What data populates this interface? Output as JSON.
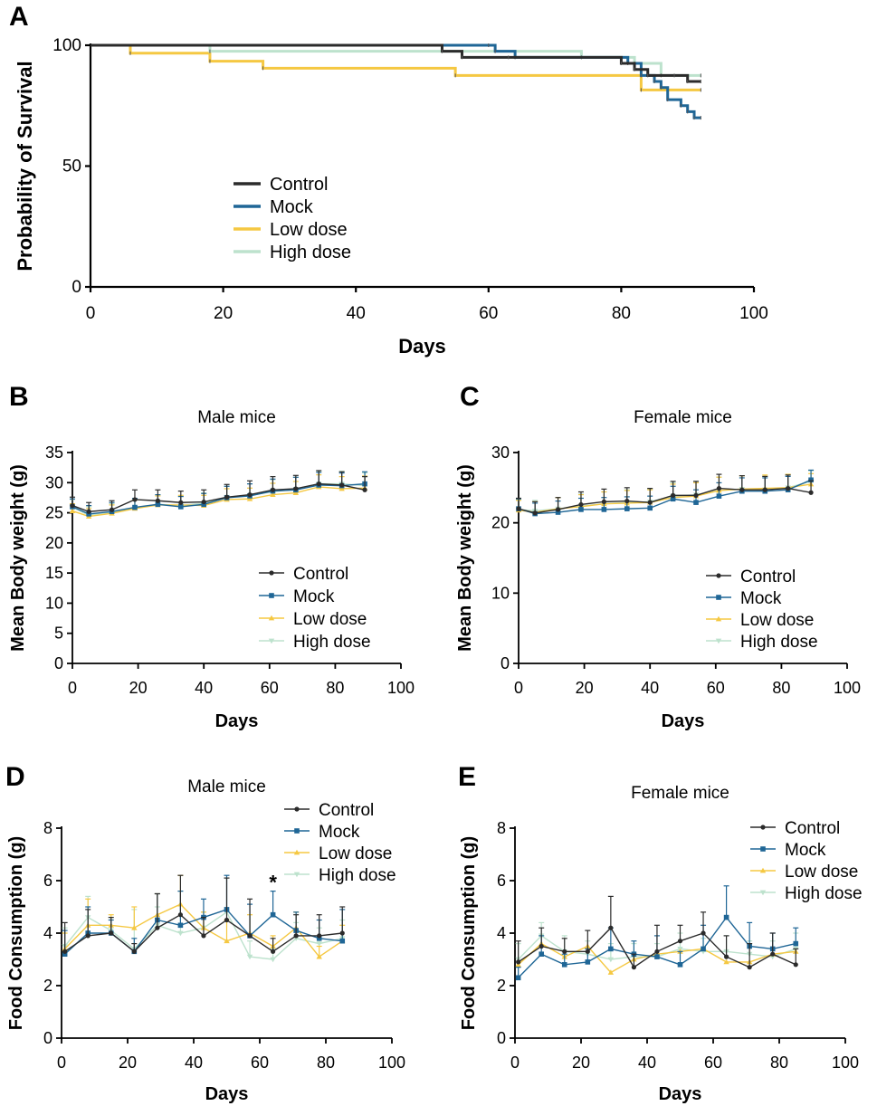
{
  "colors": {
    "control": "#2b2b2b",
    "mock": "#1f6696",
    "low": "#f5c842",
    "high": "#bde2cd"
  },
  "chart_data": [
    {
      "id": "A",
      "panel_label": "A",
      "type": "line",
      "step": true,
      "title": "",
      "xlabel": "Days",
      "ylabel": "Probability of Survival",
      "xlim": [
        0,
        100
      ],
      "ylim": [
        0,
        100
      ],
      "xticks": [
        "0",
        "20",
        "40",
        "60",
        "80",
        "100"
      ],
      "yticks": [
        "0",
        "50",
        "100"
      ],
      "legend_position": "center-left",
      "series": [
        {
          "name": "Control",
          "key": "control",
          "x": [
            0,
            53,
            56,
            63,
            80,
            82,
            84,
            88,
            90,
            92
          ],
          "y": [
            100,
            97.5,
            95,
            95,
            92.5,
            90,
            87.5,
            87.5,
            85,
            85
          ]
        },
        {
          "name": "Mock",
          "key": "mock",
          "x": [
            0,
            60,
            61,
            64,
            81,
            83,
            85,
            86,
            87,
            89,
            90,
            91,
            92
          ],
          "y": [
            100,
            100,
            97.5,
            95,
            92.5,
            87.5,
            85,
            82.5,
            77.5,
            75,
            72.5,
            70,
            70
          ]
        },
        {
          "name": "Low dose",
          "key": "low",
          "x": [
            0,
            6,
            18,
            26,
            55,
            83,
            92
          ],
          "y": [
            100,
            96.7,
            93.4,
            90.5,
            87.5,
            81.5,
            81.5
          ]
        },
        {
          "name": "High dose",
          "key": "high",
          "x": [
            0,
            18,
            74,
            82,
            86,
            92
          ],
          "y": [
            100,
            97.5,
            95,
            92.5,
            87.5,
            87.5
          ]
        }
      ]
    },
    {
      "id": "B",
      "panel_label": "B",
      "type": "line",
      "title": "Male mice",
      "xlabel": "Days",
      "ylabel": "Mean Body weight (g)",
      "xlim": [
        0,
        100
      ],
      "ylim": [
        0,
        35
      ],
      "xticks": [
        "0",
        "20",
        "40",
        "60",
        "80",
        "100"
      ],
      "yticks": [
        "0",
        "5",
        "10",
        "15",
        "20",
        "25",
        "30",
        "35"
      ],
      "legend_position": "bottom-right",
      "x": [
        0,
        5,
        12,
        19,
        26,
        33,
        40,
        47,
        54,
        61,
        68,
        75,
        82,
        89
      ],
      "series": [
        {
          "name": "Control",
          "key": "control",
          "values": [
            26.2,
            25.2,
            25.5,
            27.2,
            27.0,
            26.7,
            26.8,
            27.6,
            28.0,
            28.8,
            29.0,
            29.8,
            29.6,
            28.8
          ],
          "errors": [
            1.4,
            1.5,
            1.5,
            1.6,
            1.8,
            1.9,
            2.0,
            2.1,
            2.3,
            2.2,
            2.2,
            2.2,
            2.2,
            2.2
          ]
        },
        {
          "name": "Mock",
          "key": "mock",
          "values": [
            26.0,
            24.8,
            25.2,
            25.9,
            26.4,
            26.0,
            26.4,
            27.5,
            27.8,
            28.6,
            28.8,
            29.6,
            29.5,
            29.8
          ],
          "errors": [
            1.3,
            1.4,
            1.5,
            1.5,
            1.6,
            1.7,
            1.8,
            1.9,
            2.0,
            2.0,
            2.1,
            2.1,
            2.1,
            2.0
          ]
        },
        {
          "name": "Low dose",
          "key": "low",
          "values": [
            25.3,
            24.4,
            24.9,
            25.7,
            26.3,
            26.3,
            26.2,
            27.2,
            27.3,
            28.0,
            28.3,
            29.3,
            29.0,
            29.1
          ],
          "errors": [
            1.2,
            1.3,
            1.4,
            1.4,
            1.5,
            1.6,
            1.7,
            1.8,
            1.8,
            1.9,
            1.9,
            2.0,
            2.0,
            2.0
          ]
        },
        {
          "name": "High dose",
          "key": "high",
          "values": [
            25.9,
            24.6,
            25.1,
            25.8,
            26.4,
            26.2,
            26.6,
            27.6,
            27.9,
            28.5,
            28.9,
            29.8,
            29.8,
            29.5
          ],
          "errors": [
            1.3,
            1.4,
            1.4,
            1.5,
            1.6,
            1.6,
            1.7,
            1.8,
            1.9,
            2.0,
            2.0,
            2.1,
            2.1,
            2.1
          ]
        }
      ]
    },
    {
      "id": "C",
      "panel_label": "C",
      "type": "line",
      "title": "Female mice",
      "xlabel": "Days",
      "ylabel": "Mean Body weight (g)",
      "xlim": [
        0,
        100
      ],
      "ylim": [
        0,
        30
      ],
      "xticks": [
        "0",
        "20",
        "40",
        "60",
        "80",
        "100"
      ],
      "yticks": [
        "0",
        "10",
        "20",
        "30"
      ],
      "legend_position": "bottom-right",
      "x": [
        0,
        5,
        12,
        19,
        26,
        33,
        40,
        47,
        54,
        61,
        68,
        75,
        82,
        89
      ],
      "series": [
        {
          "name": "Control",
          "key": "control",
          "values": [
            22.0,
            21.4,
            21.9,
            22.6,
            23.0,
            23.1,
            22.9,
            23.9,
            23.9,
            24.9,
            24.7,
            24.7,
            24.9,
            24.3
          ],
          "errors": [
            1.5,
            1.6,
            1.7,
            1.8,
            1.8,
            1.9,
            2.0,
            2.0,
            2.0,
            2.0,
            2.0,
            1.9,
            1.9,
            1.7
          ]
        },
        {
          "name": "Mock",
          "key": "mock",
          "values": [
            22.0,
            21.3,
            21.5,
            21.9,
            21.9,
            22.0,
            22.1,
            23.4,
            22.9,
            23.8,
            24.5,
            24.5,
            24.7,
            26.1
          ],
          "errors": [
            1.4,
            1.5,
            1.6,
            1.6,
            1.7,
            1.7,
            1.7,
            1.8,
            1.8,
            1.9,
            1.9,
            1.9,
            1.9,
            1.4
          ]
        },
        {
          "name": "Low dose",
          "key": "low",
          "values": [
            21.8,
            21.5,
            22.0,
            22.3,
            22.7,
            22.8,
            22.9,
            23.6,
            23.8,
            24.6,
            24.8,
            24.9,
            25.0,
            25.5
          ],
          "errors": [
            1.4,
            1.5,
            1.6,
            1.7,
            1.7,
            1.8,
            1.8,
            1.9,
            1.9,
            1.9,
            1.9,
            1.9,
            1.9,
            1.5
          ]
        },
        {
          "name": "High dose",
          "key": "high",
          "values": [
            21.9,
            21.7,
            22.0,
            22.4,
            22.7,
            22.9,
            23.0,
            23.8,
            24.0,
            24.6,
            24.8,
            24.7,
            25.0,
            25.9
          ],
          "errors": [
            1.4,
            1.5,
            1.6,
            1.7,
            1.7,
            1.8,
            1.8,
            1.9,
            1.9,
            1.9,
            1.9,
            1.9,
            1.9,
            1.5
          ]
        }
      ]
    },
    {
      "id": "D",
      "panel_label": "D",
      "type": "line",
      "title": "Male mice",
      "xlabel": "Days",
      "ylabel": "Food Consumption (g)",
      "xlim": [
        0,
        100
      ],
      "ylim": [
        0,
        8
      ],
      "xticks": [
        "0",
        "20",
        "40",
        "60",
        "80",
        "100"
      ],
      "yticks": [
        "0",
        "2",
        "4",
        "6",
        "8"
      ],
      "legend_position": "top-right",
      "annotation": {
        "text": "*",
        "x": 64,
        "y": 5.95
      },
      "x": [
        1,
        8,
        15,
        22,
        29,
        36,
        43,
        50,
        57,
        64,
        71,
        78,
        85
      ],
      "series": [
        {
          "name": "Control",
          "key": "control",
          "values": [
            3.3,
            3.9,
            4.0,
            3.3,
            4.2,
            4.7,
            3.9,
            4.5,
            3.9,
            3.3,
            3.9,
            3.9,
            4.0
          ],
          "errors": [
            1.1,
            1.0,
            0.6,
            0.3,
            1.3,
            1.5,
            0.7,
            1.6,
            1.4,
            0.5,
            0.8,
            0.8,
            1.0
          ]
        },
        {
          "name": "Mock",
          "key": "mock",
          "values": [
            3.2,
            4.0,
            4.0,
            3.3,
            4.5,
            4.3,
            4.6,
            4.9,
            3.9,
            4.7,
            4.1,
            3.8,
            3.7
          ],
          "errors": [
            0.9,
            1.0,
            0.5,
            0.5,
            1.0,
            1.3,
            0.7,
            1.3,
            1.2,
            0.9,
            0.7,
            0.7,
            1.2
          ]
        },
        {
          "name": "Low dose",
          "key": "low",
          "values": [
            3.4,
            4.3,
            4.3,
            4.2,
            4.7,
            5.1,
            4.2,
            3.7,
            4.0,
            3.5,
            4.2,
            3.1,
            3.7
          ],
          "errors": [
            0.6,
            1.0,
            0.4,
            0.8,
            0.8,
            1.1,
            0.6,
            0.8,
            0.7,
            0.4,
            0.6,
            0.4,
            0.6
          ]
        },
        {
          "name": "High dose",
          "key": "high",
          "values": [
            3.5,
            4.6,
            4.1,
            3.4,
            4.3,
            4.0,
            4.2,
            4.8,
            3.1,
            3.0,
            3.8,
            3.6,
            3.8
          ],
          "errors": [
            0.7,
            0.8,
            0.5,
            1.5,
            0.7,
            1.6,
            0.6,
            1.3,
            0.6,
            0.4,
            0.6,
            0.6,
            0.7
          ]
        }
      ]
    },
    {
      "id": "E",
      "panel_label": "E",
      "type": "line",
      "title": "Female mice",
      "xlabel": "Days",
      "ylabel": "Food Consumption (g)",
      "xlim": [
        0,
        100
      ],
      "ylim": [
        0,
        8
      ],
      "xticks": [
        "0",
        "20",
        "40",
        "60",
        "80",
        "100"
      ],
      "yticks": [
        "0",
        "2",
        "4",
        "6",
        "8"
      ],
      "legend_position": "top-right",
      "x": [
        1,
        8,
        15,
        22,
        29,
        36,
        43,
        50,
        57,
        64,
        71,
        78,
        85
      ],
      "series": [
        {
          "name": "Control",
          "key": "control",
          "values": [
            2.9,
            3.5,
            3.3,
            3.3,
            4.2,
            2.7,
            3.3,
            3.7,
            4.0,
            3.1,
            2.7,
            3.2,
            2.8
          ],
          "errors": [
            0.8,
            0.7,
            0.5,
            0.8,
            1.2,
            0.5,
            1.0,
            0.6,
            0.8,
            0.8,
            0.9,
            0.8,
            0.6
          ]
        },
        {
          "name": "Mock",
          "key": "mock",
          "values": [
            2.3,
            3.2,
            2.8,
            2.9,
            3.4,
            3.2,
            3.1,
            2.8,
            3.4,
            4.6,
            3.5,
            3.4,
            3.6
          ],
          "errors": [
            0.4,
            0.7,
            0.4,
            0.5,
            0.8,
            0.5,
            0.8,
            0.5,
            0.9,
            1.2,
            0.9,
            0.6,
            0.6
          ]
        },
        {
          "name": "Low dose",
          "key": "low",
          "values": [
            2.8,
            3.6,
            3.1,
            3.5,
            2.5,
            3.0,
            3.2,
            3.3,
            3.4,
            2.9,
            2.9,
            3.2,
            3.3
          ]
        },
        {
          "name": "High dose",
          "key": "high",
          "values": [
            3.0,
            3.9,
            3.3,
            3.2,
            3.0,
            3.1,
            3.1,
            3.4,
            3.3,
            3.3,
            3.2,
            3.1,
            3.4
          ],
          "errors": [
            0.6,
            0.5,
            0.6,
            0.5,
            0.6,
            0.5,
            0.5,
            0.6,
            0.5,
            0.6,
            0.5,
            0.6,
            0.6
          ]
        }
      ]
    }
  ]
}
